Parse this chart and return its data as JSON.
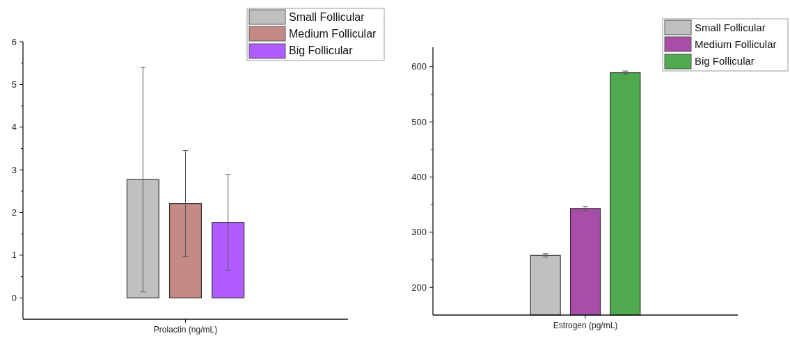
{
  "chart_data": [
    {
      "type": "bar",
      "categories": [
        "Prolactin (ng/mL)"
      ],
      "ylim": [
        -0.5,
        6
      ],
      "yticks": [
        0,
        {
          "value": 0.5,
          "label": null
        },
        1,
        {
          "value": 1.5,
          "label": null
        },
        2,
        {
          "value": 2.5,
          "label": null
        },
        3,
        {
          "value": 3.5,
          "label": null
        },
        4,
        {
          "value": 4.5,
          "label": null
        },
        5,
        {
          "value": 5.5,
          "label": null
        },
        6
      ],
      "legend": "top right",
      "grid": false,
      "series": [
        {
          "name": "Small Follicular",
          "color": "#c0c0c0",
          "values": [
            2.77
          ],
          "errors": [
            2.63
          ]
        },
        {
          "name": "Medium Follicular",
          "color": "#c48a86",
          "values": [
            2.21
          ],
          "errors": [
            1.24
          ]
        },
        {
          "name": "Big Follicular",
          "color": "#b05cff",
          "values": [
            1.77
          ],
          "errors": [
            1.12
          ]
        }
      ]
    },
    {
      "type": "bar",
      "categories": [
        "Estrogen (pg/mL)"
      ],
      "ylim": [
        150,
        635
      ],
      "yticks": [
        200,
        {
          "value": 250,
          "label": null
        },
        300,
        {
          "value": 350,
          "label": null
        },
        400,
        {
          "value": 450,
          "label": null
        },
        500,
        {
          "value": 550,
          "label": null
        },
        600
      ],
      "legend": "top right",
      "grid": false,
      "series": [
        {
          "name": "Small Follicular",
          "color": "#c0c0c0",
          "values": [
            258
          ],
          "errors": [
            3
          ]
        },
        {
          "name": "Medium Follicular",
          "color": "#a84ea8",
          "values": [
            343
          ],
          "errors": [
            4
          ]
        },
        {
          "name": "Big Follicular",
          "color": "#4faa4f",
          "values": [
            589
          ],
          "errors": [
            3
          ]
        }
      ]
    }
  ]
}
